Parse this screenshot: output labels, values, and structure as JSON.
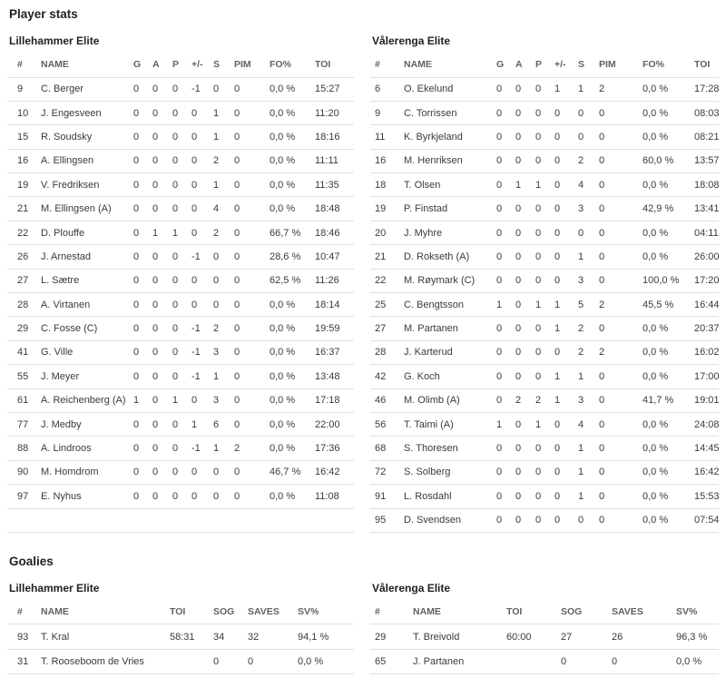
{
  "sections": {
    "player_stats_title": "Player stats",
    "goalies_title": "Goalies"
  },
  "player_stats": {
    "columns": [
      "#",
      "NAME",
      "G",
      "A",
      "P",
      "+/-",
      "S",
      "PIM",
      "FO%",
      "TOI"
    ],
    "teams": [
      {
        "name": "Lillehammer Elite",
        "rows": [
          [
            "9",
            "C. Berger",
            "0",
            "0",
            "0",
            "-1",
            "0",
            "0",
            "0,0 %",
            "15:27"
          ],
          [
            "10",
            "J. Engesveen",
            "0",
            "0",
            "0",
            "0",
            "1",
            "0",
            "0,0 %",
            "11:20"
          ],
          [
            "15",
            "R. Soudsky",
            "0",
            "0",
            "0",
            "0",
            "1",
            "0",
            "0,0 %",
            "18:16"
          ],
          [
            "16",
            "A. Ellingsen",
            "0",
            "0",
            "0",
            "0",
            "2",
            "0",
            "0,0 %",
            "11:11"
          ],
          [
            "19",
            "V. Fredriksen",
            "0",
            "0",
            "0",
            "0",
            "1",
            "0",
            "0,0 %",
            "11:35"
          ],
          [
            "21",
            "M. Ellingsen (A)",
            "0",
            "0",
            "0",
            "0",
            "4",
            "0",
            "0,0 %",
            "18:48"
          ],
          [
            "22",
            "D. Plouffe",
            "0",
            "1",
            "1",
            "0",
            "2",
            "0",
            "66,7 %",
            "18:46"
          ],
          [
            "26",
            "J. Arnestad",
            "0",
            "0",
            "0",
            "-1",
            "0",
            "0",
            "28,6 %",
            "10:47"
          ],
          [
            "27",
            "L. Sætre",
            "0",
            "0",
            "0",
            "0",
            "0",
            "0",
            "62,5 %",
            "11:26"
          ],
          [
            "28",
            "A. Virtanen",
            "0",
            "0",
            "0",
            "0",
            "0",
            "0",
            "0,0 %",
            "18:14"
          ],
          [
            "29",
            "C. Fosse (C)",
            "0",
            "0",
            "0",
            "-1",
            "2",
            "0",
            "0,0 %",
            "19:59"
          ],
          [
            "41",
            "G. Ville",
            "0",
            "0",
            "0",
            "-1",
            "3",
            "0",
            "0,0 %",
            "16:37"
          ],
          [
            "55",
            "J. Meyer",
            "0",
            "0",
            "0",
            "-1",
            "1",
            "0",
            "0,0 %",
            "13:48"
          ],
          [
            "61",
            "A. Reichenberg (A)",
            "1",
            "0",
            "1",
            "0",
            "3",
            "0",
            "0,0 %",
            "17:18"
          ],
          [
            "77",
            "J. Medby",
            "0",
            "0",
            "0",
            "1",
            "6",
            "0",
            "0,0 %",
            "22:00"
          ],
          [
            "88",
            "A. Lindroos",
            "0",
            "0",
            "0",
            "-1",
            "1",
            "2",
            "0,0 %",
            "17:36"
          ],
          [
            "90",
            "M. Homdrom",
            "0",
            "0",
            "0",
            "0",
            "0",
            "0",
            "46,7 %",
            "16:42"
          ],
          [
            "97",
            "E. Nyhus",
            "0",
            "0",
            "0",
            "0",
            "0",
            "0",
            "0,0 %",
            "11:08"
          ]
        ]
      },
      {
        "name": "Vålerenga Elite",
        "rows": [
          [
            "6",
            "O. Ekelund",
            "0",
            "0",
            "0",
            "1",
            "1",
            "2",
            "0,0 %",
            "17:28"
          ],
          [
            "9",
            "C. Torrissen",
            "0",
            "0",
            "0",
            "0",
            "0",
            "0",
            "0,0 %",
            "08:03"
          ],
          [
            "11",
            "K. Byrkjeland",
            "0",
            "0",
            "0",
            "0",
            "0",
            "0",
            "0,0 %",
            "08:21"
          ],
          [
            "16",
            "M. Henriksen",
            "0",
            "0",
            "0",
            "0",
            "2",
            "0",
            "60,0 %",
            "13:57"
          ],
          [
            "18",
            "T. Olsen",
            "0",
            "1",
            "1",
            "0",
            "4",
            "0",
            "0,0 %",
            "18:08"
          ],
          [
            "19",
            "P. Finstad",
            "0",
            "0",
            "0",
            "0",
            "3",
            "0",
            "42,9 %",
            "13:41"
          ],
          [
            "20",
            "J. Myhre",
            "0",
            "0",
            "0",
            "0",
            "0",
            "0",
            "0,0 %",
            "04:11"
          ],
          [
            "21",
            "D. Rokseth (A)",
            "0",
            "0",
            "0",
            "0",
            "1",
            "0",
            "0,0 %",
            "26:00"
          ],
          [
            "22",
            "M. Røymark (C)",
            "0",
            "0",
            "0",
            "0",
            "3",
            "0",
            "100,0 %",
            "17:20"
          ],
          [
            "25",
            "C. Bengtsson",
            "1",
            "0",
            "1",
            "1",
            "5",
            "2",
            "45,5 %",
            "16:44"
          ],
          [
            "27",
            "M. Partanen",
            "0",
            "0",
            "0",
            "1",
            "2",
            "0",
            "0,0 %",
            "20:37"
          ],
          [
            "28",
            "J. Karterud",
            "0",
            "0",
            "0",
            "0",
            "2",
            "2",
            "0,0 %",
            "16:02"
          ],
          [
            "42",
            "G. Koch",
            "0",
            "0",
            "0",
            "1",
            "1",
            "0",
            "0,0 %",
            "17:00"
          ],
          [
            "46",
            "M. Olimb (A)",
            "0",
            "2",
            "2",
            "1",
            "3",
            "0",
            "41,7 %",
            "19:01"
          ],
          [
            "56",
            "T. Taimi (A)",
            "1",
            "0",
            "1",
            "0",
            "4",
            "0",
            "0,0 %",
            "24:08"
          ],
          [
            "68",
            "S. Thoresen",
            "0",
            "0",
            "0",
            "0",
            "1",
            "0",
            "0,0 %",
            "14:45"
          ],
          [
            "72",
            "S. Solberg",
            "0",
            "0",
            "0",
            "0",
            "1",
            "0",
            "0,0 %",
            "16:42"
          ],
          [
            "91",
            "L. Rosdahl",
            "0",
            "0",
            "0",
            "0",
            "1",
            "0",
            "0,0 %",
            "15:53"
          ],
          [
            "95",
            "D. Svendsen",
            "0",
            "0",
            "0",
            "0",
            "0",
            "0",
            "0,0 %",
            "07:54"
          ]
        ]
      }
    ]
  },
  "goalies": {
    "columns": [
      "#",
      "NAME",
      "TOI",
      "SOG",
      "SAVES",
      "SV%"
    ],
    "teams": [
      {
        "name": "Lillehammer Elite",
        "rows": [
          [
            "93",
            "T. Kral",
            "58:31",
            "34",
            "32",
            "94,1 %"
          ],
          [
            "31",
            "T. Rooseboom de Vries",
            "",
            "0",
            "0",
            "0,0 %"
          ]
        ]
      },
      {
        "name": "Vålerenga Elite",
        "rows": [
          [
            "29",
            "T. Breivold",
            "60:00",
            "27",
            "26",
            "96,3 %"
          ],
          [
            "65",
            "J. Partanen",
            "",
            "0",
            "0",
            "0,0 %"
          ]
        ]
      }
    ]
  },
  "colors": {
    "heading_text": "#212121",
    "header_text": "#616161",
    "cell_text": "#3a3a3a",
    "divider": "#e0e0e0",
    "background": "#ffffff"
  }
}
